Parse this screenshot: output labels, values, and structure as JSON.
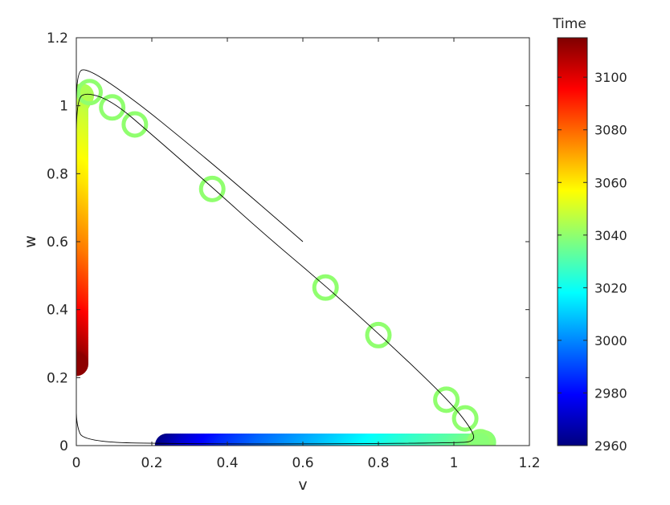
{
  "chart_data": {
    "type": "scatter",
    "title": "",
    "xlabel": "v",
    "ylabel": "w",
    "xlim": [
      0,
      1.2
    ],
    "ylim": [
      0,
      1.2
    ],
    "x_ticks": [
      0,
      0.2,
      0.4,
      0.6,
      0.8,
      1,
      1.2
    ],
    "x_tick_labels": [
      "0",
      "0.2",
      "0.4",
      "0.6",
      "0.8",
      "1",
      "1.2"
    ],
    "y_ticks": [
      0,
      0.2,
      0.4,
      0.6,
      0.8,
      1,
      1.2
    ],
    "y_tick_labels": [
      "0",
      "0.2",
      "0.4",
      "0.6",
      "0.8",
      "1",
      "1.2"
    ],
    "grid": false,
    "colorbar": {
      "title": "Time",
      "colormap": "jet",
      "range": [
        2960,
        3115
      ],
      "ticks": [
        2960,
        2980,
        3000,
        3020,
        3040,
        3060,
        3080,
        3100
      ],
      "tick_labels": [
        "2960",
        "2980",
        "3000",
        "3020",
        "3040",
        "3060",
        "3080",
        "3100"
      ]
    },
    "trajectory": [
      [
        0.6,
        0.6
      ],
      [
        0.45,
        0.745
      ],
      [
        0.3,
        0.885
      ],
      [
        0.15,
        1.02
      ],
      [
        0.03,
        1.11
      ],
      [
        0.0,
        1.1
      ],
      [
        0.0,
        0.9
      ],
      [
        0.0,
        0.6
      ],
      [
        0.0,
        0.3
      ],
      [
        0.0,
        0.15
      ],
      [
        0.0,
        0.06
      ],
      [
        0.02,
        0.01
      ],
      [
        0.3,
        0.005
      ],
      [
        0.7,
        0.005
      ],
      [
        1.0,
        0.008
      ],
      [
        1.06,
        0.012
      ],
      [
        1.04,
        0.06
      ],
      [
        0.98,
        0.14
      ],
      [
        0.82,
        0.31
      ],
      [
        0.66,
        0.47
      ],
      [
        0.5,
        0.62
      ],
      [
        0.36,
        0.76
      ],
      [
        0.2,
        0.915
      ],
      [
        0.1,
        1.01
      ],
      [
        0.03,
        1.04
      ],
      [
        0.0,
        1.02
      ],
      [
        0.0,
        0.8
      ],
      [
        0.0,
        0.5
      ],
      [
        0.0,
        0.25
      ]
    ],
    "series": [
      {
        "style": "filled",
        "points": [
          {
            "v": 0.24,
            "w": 0.0,
            "t": 2961
          },
          {
            "v": 0.3,
            "w": 0.0,
            "t": 2972
          },
          {
            "v": 0.4,
            "w": 0.0,
            "t": 2985
          },
          {
            "v": 0.5,
            "w": 0.0,
            "t": 2995
          },
          {
            "v": 0.6,
            "w": 0.0,
            "t": 3003
          },
          {
            "v": 0.7,
            "w": 0.0,
            "t": 3011
          },
          {
            "v": 0.8,
            "w": 0.0,
            "t": 3019
          },
          {
            "v": 0.9,
            "w": 0.0,
            "t": 3026
          },
          {
            "v": 1.0,
            "w": 0.0,
            "t": 3032
          },
          {
            "v": 1.05,
            "w": 0.0,
            "t": 3036
          },
          {
            "v": 1.08,
            "w": 0.01,
            "t": 3039
          },
          {
            "v": 0.015,
            "w": 1.03,
            "t": 3044
          },
          {
            "v": 0.0,
            "w": 1.0,
            "t": 3045
          },
          {
            "v": 0.0,
            "w": 0.95,
            "t": 3049
          },
          {
            "v": 0.0,
            "w": 0.9,
            "t": 3052
          },
          {
            "v": 0.0,
            "w": 0.85,
            "t": 3055
          },
          {
            "v": 0.0,
            "w": 0.8,
            "t": 3058
          },
          {
            "v": 0.0,
            "w": 0.75,
            "t": 3061
          },
          {
            "v": 0.0,
            "w": 0.7,
            "t": 3065
          },
          {
            "v": 0.0,
            "w": 0.65,
            "t": 3069
          },
          {
            "v": 0.0,
            "w": 0.6,
            "t": 3073
          },
          {
            "v": 0.0,
            "w": 0.55,
            "t": 3077
          },
          {
            "v": 0.0,
            "w": 0.5,
            "t": 3082
          },
          {
            "v": 0.0,
            "w": 0.45,
            "t": 3087
          },
          {
            "v": 0.0,
            "w": 0.4,
            "t": 3092
          },
          {
            "v": 0.0,
            "w": 0.35,
            "t": 3098
          },
          {
            "v": 0.0,
            "w": 0.3,
            "t": 3104
          },
          {
            "v": 0.0,
            "w": 0.25,
            "t": 3110
          },
          {
            "v": 0.0,
            "w": 0.24,
            "t": 3113
          }
        ]
      },
      {
        "style": "hollow",
        "points": [
          {
            "v": 1.07,
            "w": 0.01,
            "t": 3040
          },
          {
            "v": 1.03,
            "w": 0.08,
            "t": 3040
          },
          {
            "v": 0.98,
            "w": 0.135,
            "t": 3040
          },
          {
            "v": 0.8,
            "w": 0.325,
            "t": 3040
          },
          {
            "v": 0.66,
            "w": 0.465,
            "t": 3040
          },
          {
            "v": 0.36,
            "w": 0.755,
            "t": 3040
          },
          {
            "v": 0.155,
            "w": 0.945,
            "t": 3040
          },
          {
            "v": 0.095,
            "w": 0.995,
            "t": 3040
          },
          {
            "v": 0.035,
            "w": 1.04,
            "t": 3040
          }
        ]
      }
    ]
  }
}
